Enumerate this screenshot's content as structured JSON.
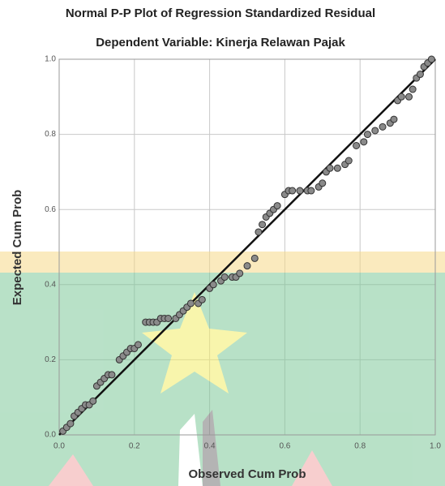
{
  "chart_data": {
    "type": "scatter",
    "title": "Normal P-P Plot of Regression Standardized Residual",
    "subtitle": "Dependent Variable: Kinerja Relawan Pajak",
    "x_label": "Observed Cum Prob",
    "y_label": "Expected Cum Prob",
    "xlim": [
      0,
      1
    ],
    "ylim": [
      0,
      1
    ],
    "xticks": [
      {
        "value": 0,
        "label": "0.0"
      },
      0.2,
      0.4,
      0.6,
      0.8,
      {
        "value": 1,
        "label": "1.0"
      }
    ],
    "yticks": [
      {
        "value": 0,
        "label": "0.0"
      },
      0.2,
      0.4,
      0.6,
      0.8,
      {
        "value": 1,
        "label": "1.0"
      }
    ],
    "grid": true,
    "reference_line": true,
    "color": "#8a8a8a",
    "x": [
      0.01,
      0.02,
      0.03,
      0.04,
      0.05,
      0.06,
      0.07,
      0.08,
      0.09,
      0.1,
      0.11,
      0.12,
      0.13,
      0.14,
      0.16,
      0.17,
      0.18,
      0.19,
      0.2,
      0.21,
      0.23,
      0.24,
      0.25,
      0.26,
      0.27,
      0.28,
      0.29,
      0.31,
      0.32,
      0.33,
      0.34,
      0.35,
      0.37,
      0.38,
      0.4,
      0.41,
      0.43,
      0.44,
      0.46,
      0.47,
      0.48,
      0.5,
      0.52,
      0.53,
      0.54,
      0.55,
      0.56,
      0.57,
      0.58,
      0.6,
      0.61,
      0.62,
      0.64,
      0.66,
      0.67,
      0.69,
      0.7,
      0.71,
      0.72,
      0.74,
      0.76,
      0.77,
      0.79,
      0.81,
      0.82,
      0.84,
      0.86,
      0.88,
      0.89,
      0.9,
      0.91,
      0.93,
      0.94,
      0.95,
      0.96,
      0.97,
      0.98,
      0.99
    ],
    "values": [
      0.01,
      0.02,
      0.03,
      0.05,
      0.06,
      0.07,
      0.08,
      0.08,
      0.09,
      0.13,
      0.14,
      0.15,
      0.16,
      0.16,
      0.2,
      0.21,
      0.22,
      0.23,
      0.23,
      0.24,
      0.3,
      0.3,
      0.3,
      0.3,
      0.31,
      0.31,
      0.31,
      0.31,
      0.32,
      0.33,
      0.34,
      0.35,
      0.35,
      0.36,
      0.39,
      0.4,
      0.41,
      0.42,
      0.42,
      0.42,
      0.43,
      0.45,
      0.47,
      0.54,
      0.56,
      0.58,
      0.59,
      0.6,
      0.61,
      0.64,
      0.65,
      0.65,
      0.65,
      0.65,
      0.65,
      0.66,
      0.67,
      0.7,
      0.71,
      0.71,
      0.72,
      0.73,
      0.77,
      0.78,
      0.8,
      0.81,
      0.82,
      0.83,
      0.84,
      0.89,
      0.9,
      0.9,
      0.92,
      0.95,
      0.96,
      0.98,
      0.99,
      1.0
    ]
  }
}
